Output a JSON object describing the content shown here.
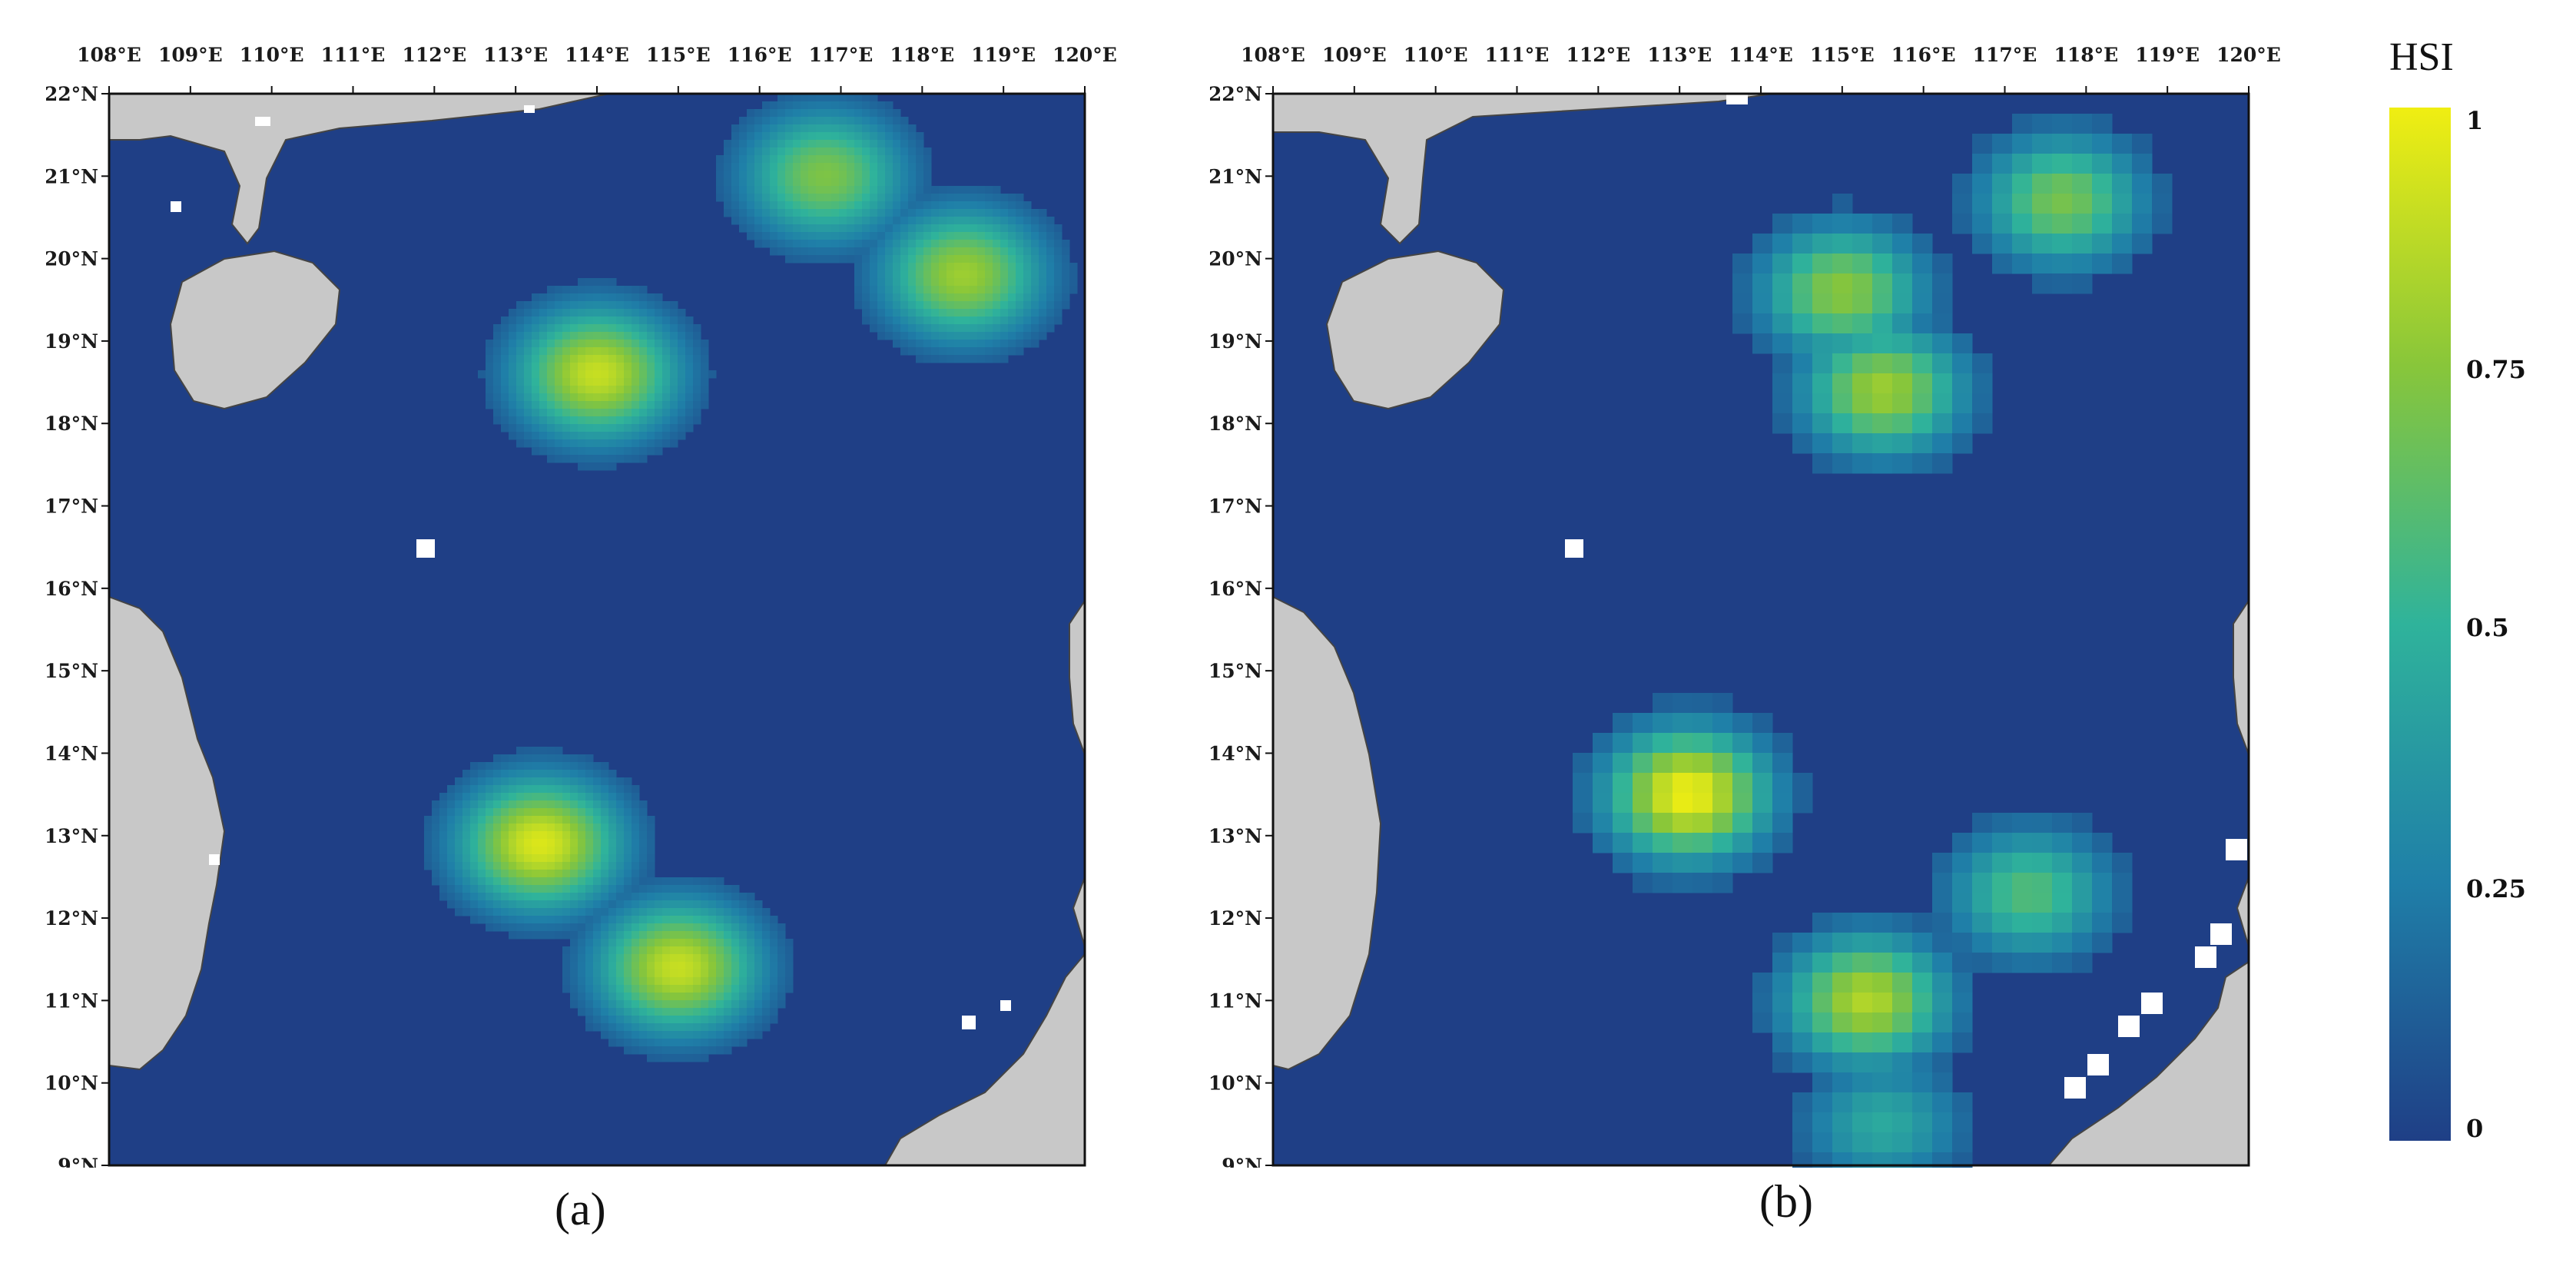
{
  "panels": [
    {
      "id": "a",
      "caption": "(a)",
      "resolution": "fine"
    },
    {
      "id": "b",
      "caption": "(b)",
      "resolution": "coarse"
    }
  ],
  "longitude_labels": [
    "108°E",
    "109°E",
    "110°E",
    "111°E",
    "112°E",
    "113°E",
    "114°E",
    "115°E",
    "116°E",
    "117°E",
    "118°E",
    "119°E",
    "120°E"
  ],
  "latitude_labels": [
    "22°N",
    "21°N",
    "20°N",
    "19°N",
    "18°N",
    "17°N",
    "16°N",
    "15°N",
    "14°N",
    "13°N",
    "12°N",
    "11°N",
    "10°N",
    "9°N"
  ],
  "legend": {
    "title": "HSI",
    "ticks": [
      "1",
      "0.75",
      "0.5",
      "0.25",
      "0"
    ],
    "colors": [
      "#1f3f86",
      "#1f7fa8",
      "#2fb39b",
      "#88c63a",
      "#f0ee12"
    ]
  },
  "colors": {
    "land": "#c8c8c8",
    "missing": "#ffffff",
    "background_sea": "#1f3f86"
  },
  "chart_data": {
    "type": "heatmap",
    "variable": "HSI",
    "range": [
      0,
      1
    ],
    "lon_range": [
      108,
      120
    ],
    "lat_range": [
      9,
      22
    ],
    "hotspots": [
      {
        "panel": "a",
        "center": [
          113.3,
          12.9
        ],
        "value": 0.95
      },
      {
        "panel": "a",
        "center": [
          115.0,
          11.4
        ],
        "value": 0.9
      },
      {
        "panel": "a",
        "center": [
          114.0,
          18.6
        ],
        "value": 0.9
      },
      {
        "panel": "a",
        "center": [
          118.5,
          19.8
        ],
        "value": 0.8
      },
      {
        "panel": "a",
        "center": [
          116.8,
          21.0
        ],
        "value": 0.72
      },
      {
        "panel": "b",
        "center": [
          113.1,
          13.5
        ],
        "value": 1.0
      },
      {
        "panel": "b",
        "center": [
          115.3,
          11.0
        ],
        "value": 0.85
      },
      {
        "panel": "b",
        "center": [
          115.5,
          18.4
        ],
        "value": 0.8
      },
      {
        "panel": "b",
        "center": [
          115.0,
          19.6
        ],
        "value": 0.75
      },
      {
        "panel": "b",
        "center": [
          117.7,
          20.7
        ],
        "value": 0.7
      },
      {
        "panel": "b",
        "center": [
          117.3,
          12.3
        ],
        "value": 0.6
      },
      {
        "panel": "b",
        "center": [
          115.5,
          9.5
        ],
        "value": 0.45
      }
    ]
  }
}
